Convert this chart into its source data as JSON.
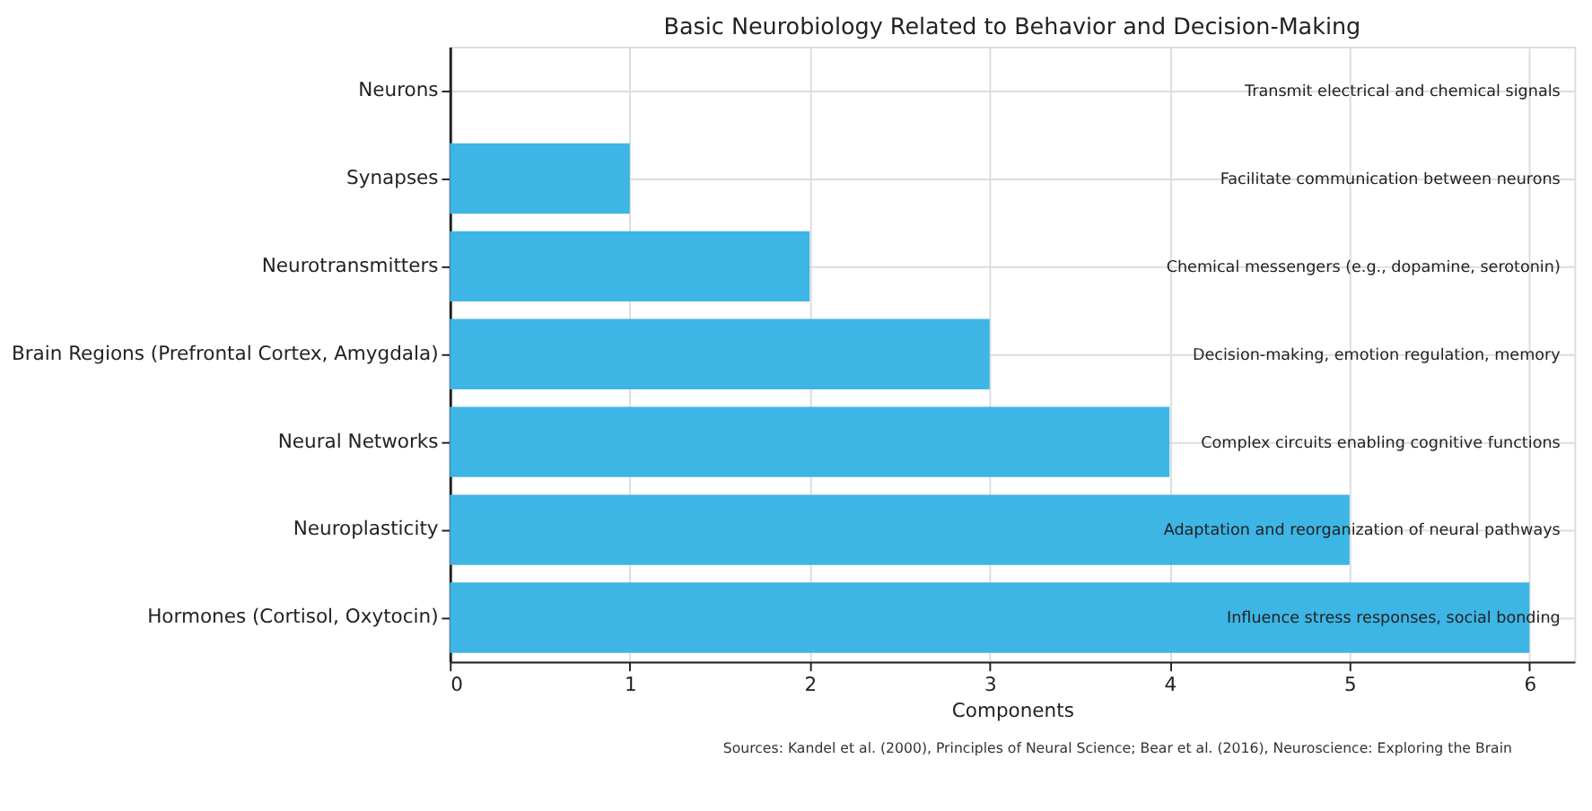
{
  "chart_data": {
    "type": "bar",
    "orientation": "horizontal",
    "title": "Basic Neurobiology Related to Behavior and Decision-Making",
    "xlabel": "Components",
    "categories": [
      "Neurons",
      "Synapses",
      "Neurotransmitters",
      "Brain Regions (Prefrontal Cortex, Amygdala)",
      "Neural Networks",
      "Neuroplasticity",
      "Hormones (Cortisol, Oxytocin)"
    ],
    "values": [
      0,
      1,
      2,
      3,
      4,
      5,
      6
    ],
    "color": "#3db5e5",
    "xlim": [
      0,
      6.25
    ],
    "xticks": [
      0,
      1,
      2,
      3,
      4,
      5,
      6
    ],
    "grid": true,
    "annotations": [
      "Transmit electrical and chemical signals",
      "Facilitate communication between neurons",
      "Chemical messengers (e.g., dopamine, serotonin)",
      "Decision-making, emotion regulation, memory",
      "Complex circuits enabling cognitive functions",
      "Adaptation and reorganization of neural pathways",
      "Influence stress responses, social bonding",
      "Sources: Kandel et al. (2000), Principles of Neural Science; Bear et al. (2016), Neuroscience: Exploring the Brain"
    ]
  }
}
